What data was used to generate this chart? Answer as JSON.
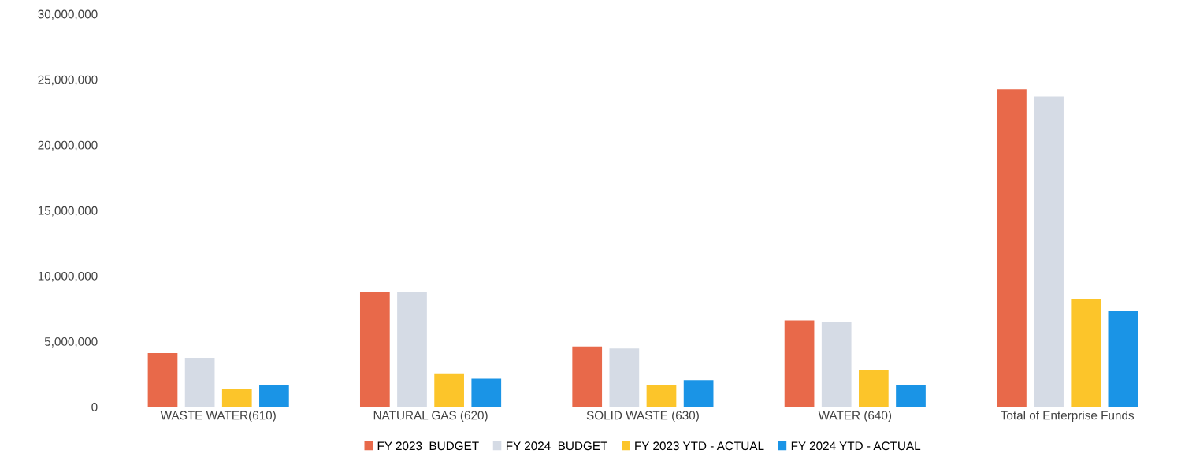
{
  "chart_data": {
    "type": "bar",
    "categories": [
      "WASTE WATER(610)",
      "NATURAL GAS (620)",
      "SOLID WASTE (630)",
      "WATER (640)",
      "Total of Enterprise Funds"
    ],
    "series": [
      {
        "name": "FY 2023  BUDGET",
        "color": "#e8694a",
        "values": [
          4100000,
          8800000,
          4600000,
          6600000,
          24250000
        ]
      },
      {
        "name": "FY 2024  BUDGET",
        "color": "#d5dbe5",
        "values": [
          3750000,
          8800000,
          4450000,
          6500000,
          23700000
        ]
      },
      {
        "name": "FY 2023 YTD - ACTUAL",
        "color": "#fcc52a",
        "values": [
          1350000,
          2550000,
          1700000,
          2800000,
          8250000
        ]
      },
      {
        "name": "FY 2024 YTD - ACTUAL",
        "color": "#1a94e6",
        "values": [
          1650000,
          2150000,
          2050000,
          1650000,
          7300000
        ]
      }
    ],
    "ylim": [
      0,
      30000000
    ],
    "yticks": [
      {
        "value": 0,
        "label": "0"
      },
      {
        "value": 5000000,
        "label": "5,000,000"
      },
      {
        "value": 10000000,
        "label": "10,000,000"
      },
      {
        "value": 15000000,
        "label": "15,000,000"
      },
      {
        "value": 20000000,
        "label": "20,000,000"
      },
      {
        "value": 25000000,
        "label": "25,000,000"
      },
      {
        "value": 30000000,
        "label": "30,000,000"
      }
    ],
    "grid": false,
    "legend": "bottom"
  }
}
